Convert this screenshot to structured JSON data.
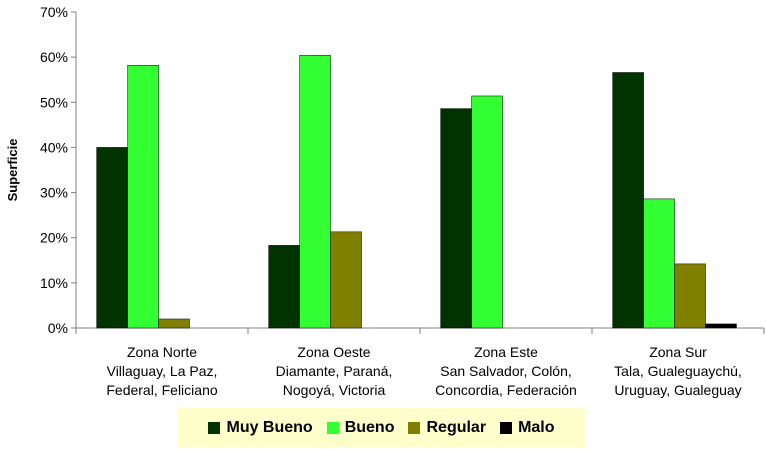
{
  "chart_data": {
    "type": "bar",
    "title": "",
    "xlabel": "",
    "ylabel": "Superficie",
    "ylim": [
      0,
      70
    ],
    "yticks": [
      "0%",
      "10%",
      "20%",
      "30%",
      "40%",
      "50%",
      "60%",
      "70%"
    ],
    "grid": false,
    "legend_position": "bottom",
    "categories": [
      [
        "Zona Norte",
        "Villaguay, La Paz,",
        "Federal, Feliciano"
      ],
      [
        "Zona Oeste",
        "Diamante, Paraná,",
        "Nogoyá, Victoria"
      ],
      [
        "Zona Este",
        "San Salvador, Colón,",
        "Concordia, Federación"
      ],
      [
        "Zona Sur",
        "Tala, Gualeguaychú,",
        "Uruguay, Gualeguay"
      ]
    ],
    "series": [
      {
        "name": "Muy Bueno",
        "color": "#003300",
        "values": [
          40,
          18.3,
          48.6,
          56.6
        ]
      },
      {
        "name": "Bueno",
        "color": "#33ff33",
        "values": [
          58.2,
          60.4,
          51.4,
          28.6
        ]
      },
      {
        "name": "Regular",
        "color": "#808000",
        "values": [
          2,
          21.3,
          0,
          14.2
        ]
      },
      {
        "name": "Malo",
        "color": "#000000",
        "values": [
          0,
          0,
          0,
          0.9
        ]
      }
    ]
  }
}
